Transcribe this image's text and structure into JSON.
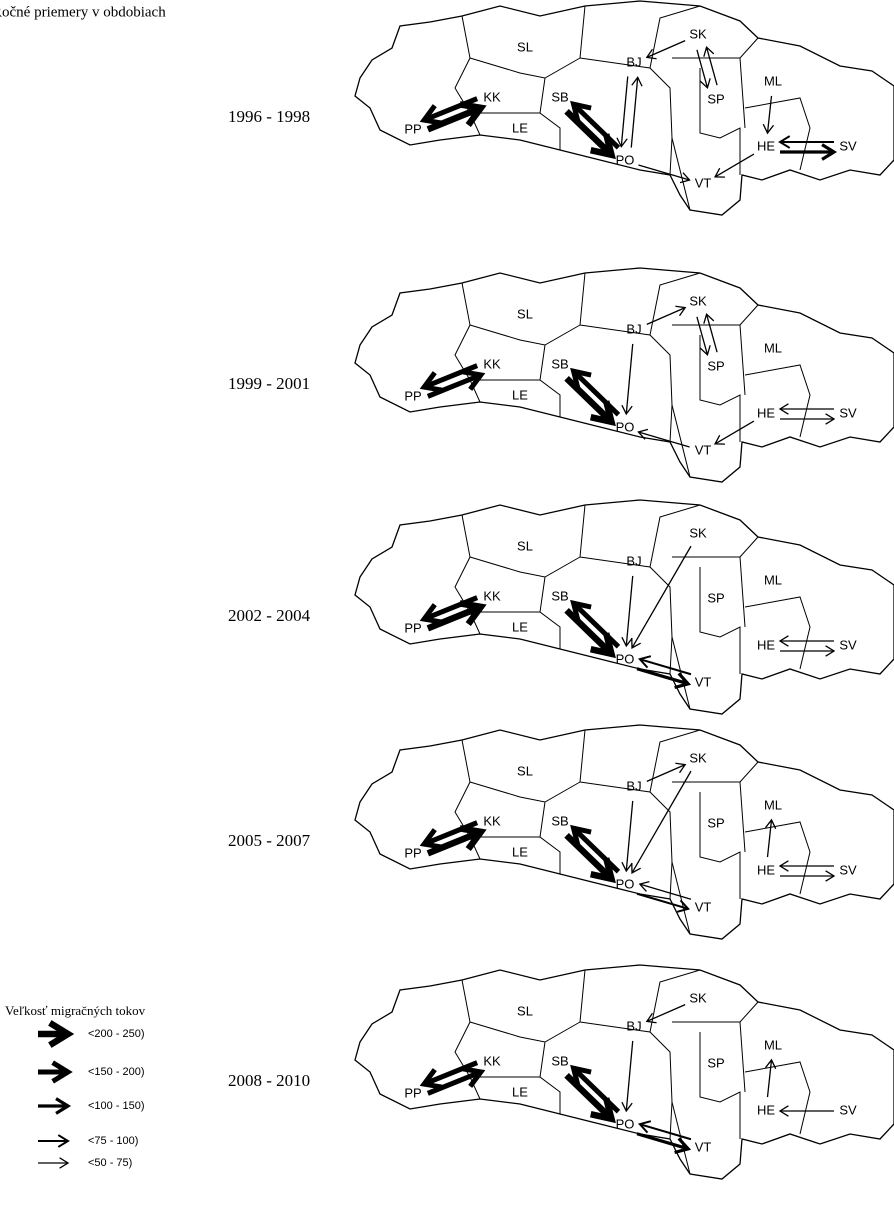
{
  "title": "Ročné priemery v obdobiach",
  "regions": [
    "PP",
    "SL",
    "KK",
    "LE",
    "SB",
    "BJ",
    "PO",
    "SK",
    "SP",
    "ML",
    "HE",
    "VT",
    "SV"
  ],
  "panels": [
    {
      "period": "1996 - 1998",
      "flows": [
        {
          "from": "PP",
          "to": "KK",
          "size": "<200 - 250)"
        },
        {
          "from": "KK",
          "to": "PP",
          "size": "<150 - 200)"
        },
        {
          "from": "SB",
          "to": "PO",
          "size": "<200 - 250)"
        },
        {
          "from": "PO",
          "to": "SB",
          "size": "<150 - 200)"
        },
        {
          "from": "BJ",
          "to": "PO",
          "size": "<50  -  75)"
        },
        {
          "from": "PO",
          "to": "BJ",
          "size": "<50  -  75)"
        },
        {
          "from": "SK",
          "to": "BJ",
          "size": "<50  -  75)"
        },
        {
          "from": "SP",
          "to": "SK",
          "size": "<50  -  75)"
        },
        {
          "from": "SK",
          "to": "SP",
          "size": "<50  -  75)"
        },
        {
          "from": "ML",
          "to": "HE",
          "size": "<50  -  75)"
        },
        {
          "from": "HE",
          "to": "SV",
          "size": "<100 - 150)"
        },
        {
          "from": "SV",
          "to": "HE",
          "size": "<75  - 100)"
        },
        {
          "from": "HE",
          "to": "VT",
          "size": "<50  -  75)"
        },
        {
          "from": "PO",
          "to": "VT",
          "size": "<50  -  75)"
        }
      ]
    },
    {
      "period": "1999 - 2001",
      "flows": [
        {
          "from": "PP",
          "to": "KK",
          "size": "<150 - 200)"
        },
        {
          "from": "KK",
          "to": "PP",
          "size": "<150 - 200)"
        },
        {
          "from": "SB",
          "to": "PO",
          "size": "<200 - 250)"
        },
        {
          "from": "PO",
          "to": "SB",
          "size": "<150 - 200)"
        },
        {
          "from": "BJ",
          "to": "PO",
          "size": "<50  -  75)"
        },
        {
          "from": "BJ",
          "to": "SK",
          "size": "<50  -  75)"
        },
        {
          "from": "SK",
          "to": "SP",
          "size": "<50  -  75)"
        },
        {
          "from": "SP",
          "to": "SK",
          "size": "<50  -  75)"
        },
        {
          "from": "VT",
          "to": "PO",
          "size": "<50  -  75)"
        },
        {
          "from": "HE",
          "to": "VT",
          "size": "<50  -  75)"
        },
        {
          "from": "HE",
          "to": "SV",
          "size": "<50  -  75)"
        },
        {
          "from": "SV",
          "to": "HE",
          "size": "<50  -  75)"
        }
      ]
    },
    {
      "period": "2002 - 2004",
      "flows": [
        {
          "from": "PP",
          "to": "KK",
          "size": "<200 - 250)"
        },
        {
          "from": "KK",
          "to": "PP",
          "size": "<150 - 200)"
        },
        {
          "from": "SB",
          "to": "PO",
          "size": "<200 - 250)"
        },
        {
          "from": "PO",
          "to": "SB",
          "size": "<150 - 200)"
        },
        {
          "from": "BJ",
          "to": "PO",
          "size": "<50  -  75)"
        },
        {
          "from": "SK",
          "to": "PO",
          "size": "<50  -  75)"
        },
        {
          "from": "PO",
          "to": "VT",
          "size": "<100 - 150)"
        },
        {
          "from": "VT",
          "to": "PO",
          "size": "<75  - 100)"
        },
        {
          "from": "HE",
          "to": "SV",
          "size": "<50  -  75)"
        },
        {
          "from": "SV",
          "to": "HE",
          "size": "<50  -  75)"
        }
      ]
    },
    {
      "period": "2005 - 2007",
      "flows": [
        {
          "from": "PP",
          "to": "KK",
          "size": "<200 - 250)"
        },
        {
          "from": "KK",
          "to": "PP",
          "size": "<150 - 200)"
        },
        {
          "from": "SB",
          "to": "PO",
          "size": "<200 - 250)"
        },
        {
          "from": "PO",
          "to": "SB",
          "size": "<150 - 200)"
        },
        {
          "from": "BJ",
          "to": "SK",
          "size": "<50  -  75)"
        },
        {
          "from": "BJ",
          "to": "PO",
          "size": "<50  -  75)"
        },
        {
          "from": "SK",
          "to": "PO",
          "size": "<50  -  75)"
        },
        {
          "from": "PO",
          "to": "VT",
          "size": "<75  - 100)"
        },
        {
          "from": "VT",
          "to": "PO",
          "size": "<50  -  75)"
        },
        {
          "from": "HE",
          "to": "ML",
          "size": "<50  -  75)"
        },
        {
          "from": "HE",
          "to": "SV",
          "size": "<50  -  75)"
        },
        {
          "from": "SV",
          "to": "HE",
          "size": "<50  -  75)"
        }
      ]
    },
    {
      "period": "2008 - 2010",
      "flows": [
        {
          "from": "PP",
          "to": "KK",
          "size": "<150 - 200)"
        },
        {
          "from": "KK",
          "to": "PP",
          "size": "<150 - 200)"
        },
        {
          "from": "SB",
          "to": "PO",
          "size": "<200 - 250)"
        },
        {
          "from": "PO",
          "to": "SB",
          "size": "<150 - 200)"
        },
        {
          "from": "SK",
          "to": "BJ",
          "size": "<50  -  75)"
        },
        {
          "from": "BJ",
          "to": "PO",
          "size": "<50  -  75)"
        },
        {
          "from": "PO",
          "to": "VT",
          "size": "<100 - 150)"
        },
        {
          "from": "VT",
          "to": "PO",
          "size": "<75  - 100)"
        },
        {
          "from": "HE",
          "to": "ML",
          "size": "<50  -  75)"
        },
        {
          "from": "SV",
          "to": "HE",
          "size": "<50  -  75)"
        }
      ]
    }
  ],
  "legend": {
    "title": "Veľkosť migračných tokov",
    "classes": [
      "<200 - 250)",
      "<150 - 200)",
      "<100 - 150)",
      "<75  - 100)",
      "<50  -  75)"
    ]
  }
}
